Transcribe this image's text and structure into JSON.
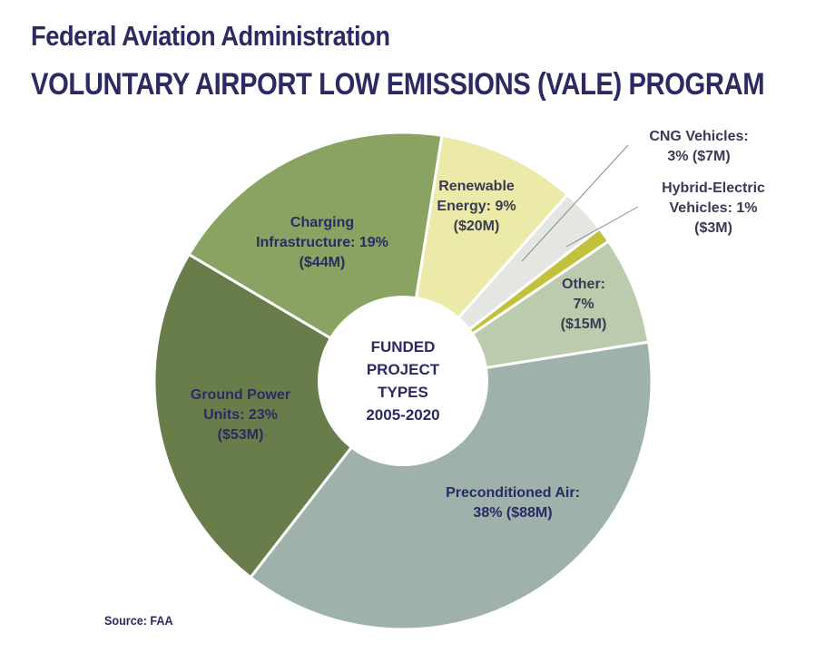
{
  "title_line1": "Federal Aviation Administration",
  "title_line2": "VOLUNTARY AIRPORT LOW EMISSIONS (VALE) PROGRAM",
  "source": "Source: FAA",
  "center_label": [
    "FUNDED",
    "PROJECT",
    "TYPES",
    "2005-2020"
  ],
  "colors": {
    "title": "#2b2a63",
    "label_dark": "#3a3a55",
    "slice_border": "#ffffff"
  },
  "chart_data": {
    "type": "pie",
    "donut": true,
    "slices": [
      {
        "name": "Renewable Energy",
        "percent": 9,
        "amount_musd": 20,
        "color": "#ebeaa9",
        "label_lines": [
          "Renewable",
          "Energy: 9%",
          "($20M)"
        ]
      },
      {
        "name": "CNG Vehicles",
        "percent": 3,
        "amount_musd": 7,
        "color": "#e4e6e1",
        "label_lines": [
          "CNG Vehicles:",
          "3% ($7M)"
        ]
      },
      {
        "name": "Hybrid-Electric Vehicles",
        "percent": 1,
        "amount_musd": 3,
        "color": "#c2c13b",
        "label_lines": [
          "Hybrid-Electric",
          "Vehicles: 1%",
          "($3M)"
        ]
      },
      {
        "name": "Other",
        "percent": 7,
        "amount_musd": 15,
        "color": "#bccaad",
        "label_lines": [
          "Other:",
          "7%",
          "($15M)"
        ]
      },
      {
        "name": "Preconditioned Air",
        "percent": 38,
        "amount_musd": 88,
        "color": "#9fb1ab",
        "label_lines": [
          "Preconditioned Air:",
          "38% ($88M)"
        ]
      },
      {
        "name": "Ground Power Units",
        "percent": 23,
        "amount_musd": 53,
        "color": "#697d4b",
        "label_lines": [
          "Ground Power",
          "Units: 23%",
          "($53M)"
        ]
      },
      {
        "name": "Charging Infrastructure",
        "percent": 19,
        "amount_musd": 44,
        "color": "#8ba362",
        "label_lines": [
          "Charging",
          "Infrastructure: 19%",
          "($44M)"
        ]
      }
    ]
  }
}
